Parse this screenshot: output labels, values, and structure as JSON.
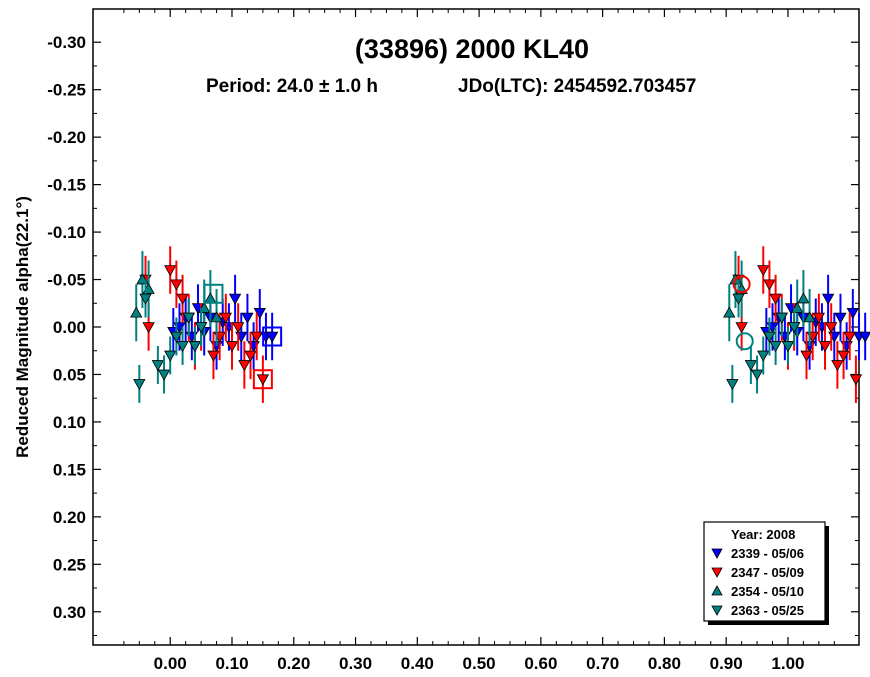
{
  "chart_data": {
    "type": "scatter",
    "title": "(33896) 2000 KL40",
    "subtitle_period": "Period: 24.0 ± 1.0 h",
    "subtitle_epoch": "JDo(LTC): 2454592.703457",
    "ylabel": "Reduced Magnitude alpha(22.1°)",
    "xlabel": "",
    "xlim": [
      -0.125,
      1.115
    ],
    "ylim": [
      -0.335,
      0.335
    ],
    "y_inverted": true,
    "x_ticks": [
      "0.00",
      "0.10",
      "0.20",
      "0.30",
      "0.40",
      "0.50",
      "0.60",
      "0.70",
      "0.80",
      "0.90",
      "1.00"
    ],
    "x_tick_values": [
      0,
      0.1,
      0.2,
      0.3,
      0.4,
      0.5,
      0.6,
      0.7,
      0.8,
      0.9,
      1.0
    ],
    "y_ticks": [
      "-0.30",
      "-0.25",
      "-0.20",
      "-0.15",
      "-0.10",
      "-0.05",
      "0.00",
      "0.05",
      "0.10",
      "0.15",
      "0.20",
      "0.25",
      "0.30"
    ],
    "y_tick_values": [
      -0.3,
      -0.25,
      -0.2,
      -0.15,
      -0.1,
      -0.05,
      0,
      0.05,
      0.1,
      0.15,
      0.2,
      0.25,
      0.3
    ],
    "legend": {
      "title": "Year: 2008",
      "placement": "bottom-right",
      "entries": [
        {
          "label": "2339 - 05/06",
          "color": "#0000ff",
          "marker": "triangle-down"
        },
        {
          "label": "2347 - 05/09",
          "color": "#ff0000",
          "marker": "triangle-down"
        },
        {
          "label": "2354 - 05/10",
          "color": "#008080",
          "marker": "triangle-up"
        },
        {
          "label": "2363 - 05/25",
          "color": "#008080",
          "marker": "triangle-down"
        }
      ]
    },
    "series": [
      {
        "name": "2339 - 05/06",
        "color": "#0000ff",
        "marker": "triangle-down",
        "error": 0.025,
        "points": [
          [
            0.005,
            0.005
          ],
          [
            0.015,
            0.0
          ],
          [
            0.025,
            -0.01
          ],
          [
            0.035,
            0.01
          ],
          [
            0.045,
            -0.02
          ],
          [
            0.055,
            0.005
          ],
          [
            0.065,
            -0.01
          ],
          [
            0.075,
            0.02
          ],
          [
            0.085,
            -0.005
          ],
          [
            0.095,
            0.0
          ],
          [
            0.105,
            -0.03
          ],
          [
            0.115,
            0.01
          ],
          [
            0.125,
            -0.01
          ],
          [
            0.135,
            0.02
          ],
          [
            0.145,
            -0.015
          ],
          [
            0.155,
            0.01
          ],
          [
            0.165,
            0.01
          ]
        ]
      },
      {
        "name": "2347 - 05/09",
        "color": "#ff0000",
        "marker": "triangle-down",
        "error": 0.025,
        "points": [
          [
            -0.04,
            -0.05
          ],
          [
            -0.035,
            0.0
          ],
          [
            0.0,
            -0.06
          ],
          [
            0.01,
            -0.045
          ],
          [
            0.02,
            -0.03
          ],
          [
            0.03,
            -0.01
          ],
          [
            0.04,
            0.02
          ],
          [
            0.05,
            0.0
          ],
          [
            0.07,
            0.03
          ],
          [
            0.08,
            0.01
          ],
          [
            0.09,
            -0.01
          ],
          [
            0.1,
            0.02
          ],
          [
            0.11,
            0.0
          ],
          [
            0.12,
            0.04
          ],
          [
            0.13,
            0.03
          ],
          [
            0.14,
            0.01
          ],
          [
            0.15,
            0.055
          ]
        ]
      },
      {
        "name": "2354 - 05/10",
        "color": "#008080",
        "marker": "triangle-up",
        "error": 0.03,
        "points": [
          [
            -0.055,
            -0.015
          ],
          [
            -0.045,
            -0.05
          ],
          [
            -0.035,
            -0.04
          ],
          [
            0.055,
            -0.02
          ],
          [
            0.065,
            -0.03
          ],
          [
            0.075,
            -0.01
          ]
        ]
      },
      {
        "name": "2363 - 05/25",
        "color": "#008080",
        "marker": "triangle-down",
        "error": 0.02,
        "points": [
          [
            -0.05,
            0.06
          ],
          [
            -0.04,
            -0.03
          ],
          [
            -0.02,
            0.04
          ],
          [
            -0.01,
            0.05
          ],
          [
            0.0,
            0.03
          ],
          [
            0.01,
            0.01
          ],
          [
            0.02,
            0.02
          ],
          [
            0.03,
            -0.01
          ],
          [
            0.04,
            0.02
          ],
          [
            0.05,
            0.0
          ]
        ]
      }
    ],
    "special_markers": [
      {
        "shape": "square",
        "color": "#0000ff",
        "x": 0.165,
        "y": 0.01
      },
      {
        "shape": "square",
        "color": "#ff0000",
        "x": 0.15,
        "y": 0.055
      },
      {
        "shape": "square",
        "color": "#008080",
        "x": 0.07,
        "y": -0.035
      },
      {
        "shape": "circle",
        "color": "#ff0000",
        "x": 0.925,
        "y": -0.045
      },
      {
        "shape": "circle",
        "color": "#008080",
        "x": 0.93,
        "y": 0.015
      }
    ]
  }
}
